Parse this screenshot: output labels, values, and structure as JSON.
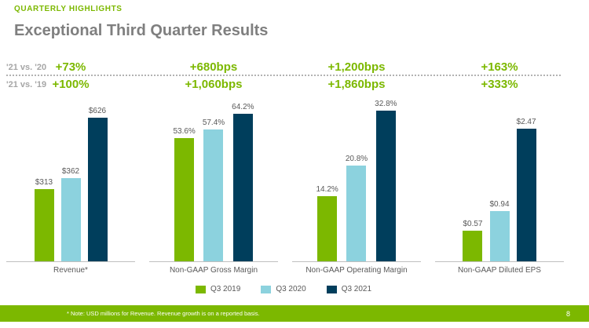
{
  "page": {
    "eyebrow": "QUARTERLY HIGHLIGHTS",
    "title": "Exceptional Third Quarter Results",
    "footnote": "* Note: USD millions for Revenue. Revenue growth is on a reported basis.",
    "page_number": "8"
  },
  "colors": {
    "accent_green": "#7cb800",
    "bar_q3_2019": "#7cb800",
    "bar_q3_2020": "#8cd2de",
    "bar_q3_2021": "#003e5c",
    "title_gray": "#7f7f7f",
    "label_gray": "#595959",
    "row_label_gray": "#a6a6a6",
    "axis_gray": "#bfbfbf"
  },
  "comparison_rows": [
    {
      "label": "'21 vs. '20",
      "values": [
        "+73%",
        "+680bps",
        "+1,200bps",
        "+163%"
      ]
    },
    {
      "label": "'21 vs. '19",
      "values": [
        "+100%",
        "+1,060bps",
        "+1,860bps",
        "+333%"
      ]
    }
  ],
  "legend": [
    {
      "label": "Q3 2019",
      "color": "#7cb800"
    },
    {
      "label": "Q3 2020",
      "color": "#8cd2de"
    },
    {
      "label": "Q3 2021",
      "color": "#003e5c"
    }
  ],
  "chart_data": [
    {
      "type": "bar",
      "title": "Revenue*",
      "categories": [
        "Q3 2019",
        "Q3 2020",
        "Q3 2021"
      ],
      "values": [
        313,
        362,
        626
      ],
      "data_labels": [
        "$313",
        "$362",
        "$626"
      ],
      "ylim": [
        0,
        700
      ],
      "xlabel": "",
      "ylabel": "",
      "grid": false,
      "legend_position": "bottom-center-shared"
    },
    {
      "type": "bar",
      "title": "Non-GAAP Gross Margin",
      "categories": [
        "Q3 2019",
        "Q3 2020",
        "Q3 2021"
      ],
      "values": [
        53.6,
        57.4,
        64.2
      ],
      "data_labels": [
        "53.6%",
        "57.4%",
        "64.2%"
      ],
      "ylim": [
        0,
        70
      ],
      "xlabel": "",
      "ylabel": "",
      "grid": false,
      "legend_position": "bottom-center-shared"
    },
    {
      "type": "bar",
      "title": "Non-GAAP Operating Margin",
      "categories": [
        "Q3 2019",
        "Q3 2020",
        "Q3 2021"
      ],
      "values": [
        14.2,
        20.8,
        32.8
      ],
      "data_labels": [
        "14.2%",
        "20.8%",
        "32.8%"
      ],
      "ylim": [
        0,
        35
      ],
      "xlabel": "",
      "ylabel": "",
      "grid": false,
      "legend_position": "bottom-center-shared"
    },
    {
      "type": "bar",
      "title": "Non-GAAP Diluted EPS",
      "categories": [
        "Q3 2019",
        "Q3 2020",
        "Q3 2021"
      ],
      "values": [
        0.57,
        0.94,
        2.47
      ],
      "data_labels": [
        "$0.57",
        "$0.94",
        "$2.47"
      ],
      "ylim": [
        0,
        3
      ],
      "xlabel": "",
      "ylabel": "",
      "grid": false,
      "legend_position": "bottom-center-shared"
    }
  ]
}
